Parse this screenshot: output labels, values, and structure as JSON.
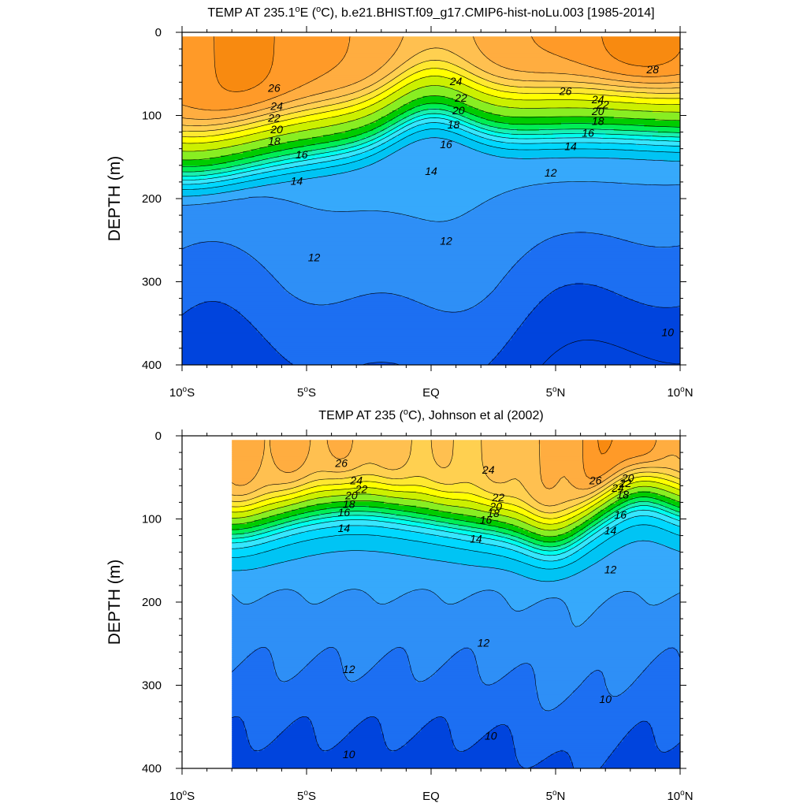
{
  "colors": {
    "palette": [
      "#0044dd",
      "#1c6ff2",
      "#2e8ff6",
      "#36a9fb",
      "#00c4f4",
      "#00d8ff",
      "#36e6ff",
      "#00ffee",
      "#18f0b0",
      "#00ee55",
      "#00cc00",
      "#88ee22",
      "#ccf000",
      "#ffff00",
      "#ffe830",
      "#ffd050",
      "#ffc050",
      "#ffad40",
      "#ff9a28",
      "#f88a10",
      "#f07000",
      "#ff4400",
      "#ff0000"
    ],
    "palette_start_value": 9,
    "palette_step": 1,
    "contour_line": "#000000",
    "missing_fill": "#ffffff"
  },
  "chart_data": [
    {
      "type": "contour",
      "title": "TEMP AT 235.1°E (°C), b.e21.BHIST.f09_g17.CMIP6-hist-noLu.003 [1985-2014]",
      "title_parts": {
        "pre": "TEMP AT 235.1",
        "deg1": "o",
        "mid": "E (",
        "deg2": "o",
        "post": "C), b.e21.BHIST.f09_g17.CMIP6-hist-noLu.003 [1985-2014]"
      },
      "ylabel": "DEPTH (m)",
      "xlim": [
        -10,
        10
      ],
      "ylim": [
        400,
        0
      ],
      "data_x_range": [
        -10,
        10
      ],
      "data_y_range": [
        5,
        400
      ],
      "x_ticks": [
        {
          "v": -10,
          "num": "10",
          "deg": "o",
          "hem": "S"
        },
        {
          "v": -5,
          "num": "5",
          "deg": "o",
          "hem": "S"
        },
        {
          "v": 0,
          "num": "EQ",
          "deg": "",
          "hem": ""
        },
        {
          "v": 5,
          "num": "5",
          "deg": "o",
          "hem": "N"
        },
        {
          "v": 10,
          "num": "10",
          "deg": "o",
          "hem": "N"
        }
      ],
      "y_ticks": [
        0,
        100,
        200,
        300,
        400
      ],
      "contour_levels": [
        9,
        10,
        11,
        12,
        13,
        14,
        15,
        16,
        17,
        18,
        19,
        20,
        21,
        22,
        23,
        24,
        25,
        26,
        27,
        28,
        29
      ],
      "contour_labels": [
        {
          "text": "26",
          "x": -6.3,
          "y": 68
        },
        {
          "text": "24",
          "x": -6.2,
          "y": 90
        },
        {
          "text": "22",
          "x": -6.3,
          "y": 104
        },
        {
          "text": "20",
          "x": -6.2,
          "y": 118
        },
        {
          "text": "18",
          "x": -6.3,
          "y": 132
        },
        {
          "text": "16",
          "x": -5.2,
          "y": 148
        },
        {
          "text": "14",
          "x": -5.4,
          "y": 180
        },
        {
          "text": "12",
          "x": -4.7,
          "y": 272
        },
        {
          "text": "24",
          "x": 1.0,
          "y": 60
        },
        {
          "text": "22",
          "x": 1.2,
          "y": 80
        },
        {
          "text": "20",
          "x": 1.1,
          "y": 95
        },
        {
          "text": "18",
          "x": 0.9,
          "y": 112
        },
        {
          "text": "16",
          "x": 0.6,
          "y": 136
        },
        {
          "text": "14",
          "x": 0.0,
          "y": 168
        },
        {
          "text": "12",
          "x": 0.6,
          "y": 252
        },
        {
          "text": "26",
          "x": 5.4,
          "y": 72
        },
        {
          "text": "24",
          "x": 6.7,
          "y": 82
        },
        {
          "text": "22",
          "x": 6.9,
          "y": 88
        },
        {
          "text": "20",
          "x": 6.7,
          "y": 96
        },
        {
          "text": "18",
          "x": 6.7,
          "y": 108
        },
        {
          "text": "16",
          "x": 6.3,
          "y": 122
        },
        {
          "text": "14",
          "x": 5.6,
          "y": 138
        },
        {
          "text": "12",
          "x": 4.8,
          "y": 170
        },
        {
          "text": "28",
          "x": 8.9,
          "y": 46
        },
        {
          "text": "10",
          "x": 9.5,
          "y": 362
        }
      ]
    },
    {
      "type": "contour",
      "title": "TEMP AT 235 (°C), Johnson et al (2002)",
      "title_parts": {
        "pre": "TEMP AT 235 (",
        "deg1": "o",
        "mid": "C), Johnson et al (2002)",
        "deg2": "",
        "post": ""
      },
      "ylabel": "DEPTH (m)",
      "xlim": [
        -10,
        10
      ],
      "ylim": [
        400,
        0
      ],
      "data_x_range": [
        -8,
        10
      ],
      "data_y_range": [
        5,
        400
      ],
      "x_ticks": [
        {
          "v": -10,
          "num": "10",
          "deg": "o",
          "hem": "S"
        },
        {
          "v": -5,
          "num": "5",
          "deg": "o",
          "hem": "S"
        },
        {
          "v": 0,
          "num": "EQ",
          "deg": "",
          "hem": ""
        },
        {
          "v": 5,
          "num": "5",
          "deg": "o",
          "hem": "N"
        },
        {
          "v": 10,
          "num": "10",
          "deg": "o",
          "hem": "N"
        }
      ],
      "y_ticks": [
        0,
        100,
        200,
        300,
        400
      ],
      "contour_levels": [
        9,
        10,
        11,
        12,
        13,
        14,
        15,
        16,
        17,
        18,
        19,
        20,
        21,
        22,
        23,
        24,
        25,
        26,
        27,
        28,
        29
      ],
      "contour_labels": [
        {
          "text": "26",
          "x": -3.6,
          "y": 34
        },
        {
          "text": "24",
          "x": -3.0,
          "y": 55
        },
        {
          "text": "22",
          "x": -2.8,
          "y": 65
        },
        {
          "text": "20",
          "x": -3.2,
          "y": 73
        },
        {
          "text": "18",
          "x": -3.3,
          "y": 83
        },
        {
          "text": "16",
          "x": -3.5,
          "y": 93
        },
        {
          "text": "14",
          "x": -3.5,
          "y": 112
        },
        {
          "text": "12",
          "x": -3.3,
          "y": 282
        },
        {
          "text": "10",
          "x": -3.3,
          "y": 384
        },
        {
          "text": "24",
          "x": 2.3,
          "y": 42
        },
        {
          "text": "22",
          "x": 2.7,
          "y": 75
        },
        {
          "text": "20",
          "x": 2.6,
          "y": 86
        },
        {
          "text": "18",
          "x": 2.5,
          "y": 94
        },
        {
          "text": "16",
          "x": 2.2,
          "y": 102
        },
        {
          "text": "14",
          "x": 1.8,
          "y": 125
        },
        {
          "text": "12",
          "x": 2.1,
          "y": 250
        },
        {
          "text": "10",
          "x": 2.4,
          "y": 362
        },
        {
          "text": "26",
          "x": 6.6,
          "y": 55
        },
        {
          "text": "24",
          "x": 7.5,
          "y": 64
        },
        {
          "text": "22",
          "x": 7.8,
          "y": 58
        },
        {
          "text": "20",
          "x": 7.9,
          "y": 52
        },
        {
          "text": "18",
          "x": 7.7,
          "y": 72
        },
        {
          "text": "16",
          "x": 7.6,
          "y": 96
        },
        {
          "text": "14",
          "x": 7.2,
          "y": 115
        },
        {
          "text": "12",
          "x": 7.2,
          "y": 162
        },
        {
          "text": "10",
          "x": 7.0,
          "y": 318
        }
      ]
    }
  ]
}
